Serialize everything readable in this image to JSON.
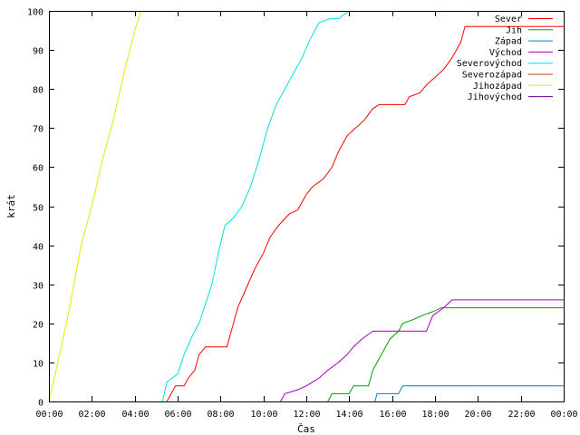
{
  "chart_data": {
    "type": "line",
    "xlabel": "Čas",
    "ylabel": "krát",
    "x_ticks": [
      "00:00",
      "02:00",
      "04:00",
      "06:00",
      "08:00",
      "10:00",
      "12:00",
      "14:00",
      "16:00",
      "18:00",
      "20:00",
      "22:00",
      "00:00"
    ],
    "xlim": [
      0,
      24
    ],
    "ylim": [
      0,
      100
    ],
    "y_ticks": [
      0,
      10,
      20,
      30,
      40,
      50,
      60,
      70,
      80,
      90,
      100
    ],
    "grid": false,
    "legend_position": "top-right",
    "series": [
      {
        "name": "Sever",
        "color": "#ff0000",
        "points": [
          [
            5.5,
            0
          ],
          [
            5.7,
            2
          ],
          [
            5.9,
            4
          ],
          [
            6.3,
            4
          ],
          [
            6.5,
            6
          ],
          [
            6.8,
            8
          ],
          [
            7.0,
            12
          ],
          [
            7.3,
            14
          ],
          [
            8.3,
            14
          ],
          [
            8.5,
            18
          ],
          [
            8.8,
            24
          ],
          [
            9.2,
            29
          ],
          [
            9.6,
            34
          ],
          [
            10.0,
            38
          ],
          [
            10.3,
            42
          ],
          [
            10.7,
            45
          ],
          [
            11.2,
            48
          ],
          [
            11.6,
            49
          ],
          [
            12.0,
            53
          ],
          [
            12.3,
            55
          ],
          [
            12.8,
            57
          ],
          [
            13.2,
            60
          ],
          [
            13.5,
            64
          ],
          [
            13.9,
            68
          ],
          [
            14.3,
            70
          ],
          [
            14.7,
            72
          ],
          [
            15.1,
            75
          ],
          [
            15.4,
            76
          ],
          [
            16.6,
            76
          ],
          [
            16.8,
            78
          ],
          [
            17.3,
            79
          ],
          [
            17.6,
            81
          ],
          [
            18.0,
            83
          ],
          [
            18.4,
            85
          ],
          [
            18.8,
            88
          ],
          [
            19.2,
            92
          ],
          [
            19.4,
            96
          ],
          [
            24,
            96
          ]
        ]
      },
      {
        "name": "Jih",
        "color": "#00a000",
        "points": [
          [
            13.0,
            0
          ],
          [
            13.2,
            2
          ],
          [
            14.0,
            2
          ],
          [
            14.2,
            4
          ],
          [
            14.9,
            4
          ],
          [
            15.1,
            8
          ],
          [
            15.5,
            12
          ],
          [
            15.9,
            16
          ],
          [
            16.3,
            18
          ],
          [
            16.5,
            20
          ],
          [
            17.0,
            21
          ],
          [
            17.4,
            22
          ],
          [
            17.9,
            23
          ],
          [
            18.3,
            24
          ],
          [
            24,
            24
          ]
        ]
      },
      {
        "name": "Západ",
        "color": "#0080c0",
        "points": [
          [
            15.2,
            0
          ],
          [
            15.3,
            2
          ],
          [
            16.3,
            2
          ],
          [
            16.5,
            4
          ],
          [
            24,
            4
          ]
        ]
      },
      {
        "name": "Východ",
        "color": "#a000c0",
        "points": [
          [
            10.8,
            0
          ],
          [
            11.0,
            2
          ],
          [
            11.6,
            3
          ],
          [
            12.0,
            4
          ],
          [
            12.6,
            6
          ],
          [
            13.0,
            8
          ],
          [
            13.5,
            10
          ],
          [
            13.9,
            12
          ],
          [
            14.2,
            14
          ],
          [
            14.6,
            16
          ],
          [
            15.1,
            18
          ],
          [
            17.6,
            18
          ],
          [
            17.9,
            22
          ],
          [
            18.4,
            24
          ],
          [
            18.8,
            26
          ],
          [
            24,
            26
          ]
        ]
      },
      {
        "name": "Severovýchod",
        "color": "#00e0e0",
        "points": [
          [
            5.3,
            0
          ],
          [
            5.5,
            5
          ],
          [
            6.0,
            7
          ],
          [
            6.3,
            12
          ],
          [
            6.7,
            17
          ],
          [
            7.0,
            20
          ],
          [
            7.3,
            25
          ],
          [
            7.6,
            30
          ],
          [
            7.9,
            38
          ],
          [
            8.2,
            45
          ],
          [
            8.6,
            47
          ],
          [
            9.0,
            50
          ],
          [
            9.4,
            55
          ],
          [
            9.8,
            62
          ],
          [
            10.2,
            70
          ],
          [
            10.6,
            76
          ],
          [
            11.0,
            80
          ],
          [
            11.4,
            84
          ],
          [
            11.8,
            88
          ],
          [
            12.2,
            93
          ],
          [
            12.6,
            97
          ],
          [
            13.1,
            98
          ],
          [
            13.5,
            98
          ],
          [
            14.0,
            100
          ]
        ]
      },
      {
        "name": "Severozápad",
        "color": "#c04000",
        "points": []
      },
      {
        "name": "Jihozápad",
        "color": "#e8e800",
        "points": [
          [
            0,
            0
          ],
          [
            0.5,
            12
          ],
          [
            1.0,
            25
          ],
          [
            1.5,
            40
          ],
          [
            2.0,
            50
          ],
          [
            2.5,
            62
          ],
          [
            3.0,
            72
          ],
          [
            3.5,
            84
          ],
          [
            4.0,
            95
          ],
          [
            4.3,
            100
          ]
        ]
      },
      {
        "name": "Jihovýchod",
        "color": "#5000a0",
        "points": []
      }
    ]
  }
}
